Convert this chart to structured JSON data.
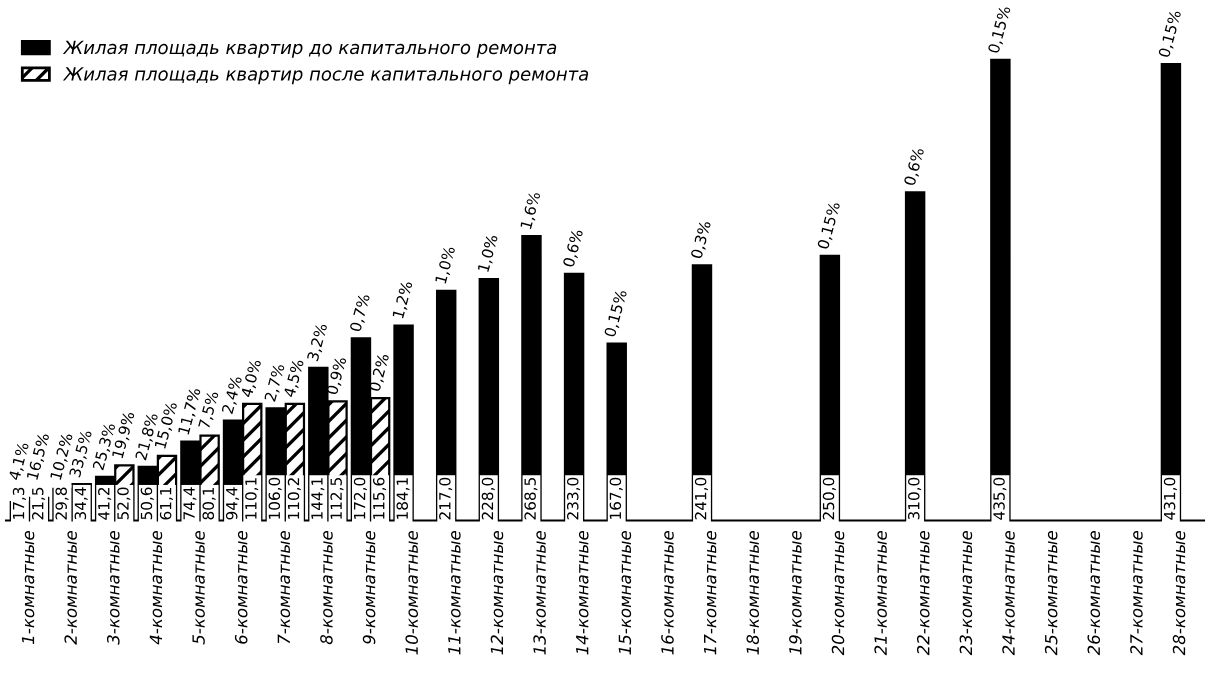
{
  "chart_data": {
    "type": "bar",
    "categories": [
      "1-комнатные",
      "2-комнатные",
      "3-комнатные",
      "4-комнатные",
      "5-комнатные",
      "6-комнатные",
      "7-комнатные",
      "8-комнатные",
      "9-комнатные",
      "10-комнатные",
      "11-комнатные",
      "12-комнатные",
      "13-комнатные",
      "14-комнатные",
      "15-комнатные",
      "16-комнатные",
      "17-комнатные",
      "18-комнатные",
      "19-комнатные",
      "20-комнатные",
      "21-комнатные",
      "22-комнатные",
      "23-комнатные",
      "24-комнатные",
      "25-комнатные",
      "26-комнатные",
      "27-комнатные",
      "28-комнатные"
    ],
    "series": [
      {
        "name": "Жилая площадь квартир до капитального ремонта",
        "color": "#000000",
        "values": [
          17.3,
          29.8,
          41.2,
          50.6,
          74.4,
          94.4,
          106.0,
          144.1,
          172.0,
          184.1,
          217.0,
          228.0,
          268.5,
          233.0,
          167.0,
          null,
          241.0,
          null,
          null,
          250.0,
          null,
          310.0,
          null,
          435.0,
          null,
          null,
          null,
          431.0
        ],
        "value_labels": [
          "17,3",
          "29,8",
          "41,2",
          "50,6",
          "74,4",
          "94,4",
          "106,0",
          "144,1",
          "172,0",
          "184,1",
          "217,0",
          "228,0",
          "268,5",
          "233,0",
          "167,0",
          null,
          "241,0",
          null,
          null,
          "250,0",
          null,
          "310,0",
          null,
          "435,0",
          null,
          null,
          null,
          "431,0"
        ]
      },
      {
        "name": "Жилая площадь квартир после капитального ремонта",
        "color": "#000000",
        "values": [
          21.5,
          34.4,
          52.0,
          61.1,
          80.1,
          110.1,
          110.2,
          112.5,
          115.6,
          null,
          null,
          null,
          null,
          null,
          null,
          null,
          null,
          null,
          null,
          null,
          null,
          null,
          null,
          null,
          null,
          null,
          null,
          null
        ],
        "value_labels": [
          "21,5",
          "34,4",
          "52,0",
          "61,1",
          "80,1",
          "110,1",
          "110,2",
          "112,5",
          "115,6",
          null,
          null,
          null,
          null,
          null,
          null,
          null,
          null,
          null,
          null,
          null,
          null,
          null,
          null,
          null,
          null,
          null,
          null,
          null
        ]
      }
    ],
    "annotations": [
      {
        "text": "4,1%",
        "x": "1-комнатные",
        "y": 17.3
      },
      {
        "text": "16,5%",
        "x": "1-комнатные",
        "y": 21.5
      },
      {
        "text": "10,2%",
        "x": "2-комнатные",
        "y": 29.8
      },
      {
        "text": "33,5%",
        "x": "2-комнатные",
        "y": 34.4
      },
      {
        "text": "25,3%",
        "x": "3-комнатные",
        "y": 41.2
      },
      {
        "text": "19,9%",
        "x": "3-комнатные",
        "y": 52.0
      },
      {
        "text": "21,8%",
        "x": "4-комнатные",
        "y": 50.6
      },
      {
        "text": "15,0%",
        "x": "4-комнатные",
        "y": 61.1
      },
      {
        "text": "11,7%",
        "x": "5-комнатные",
        "y": 74.4
      },
      {
        "text": "7,5%",
        "x": "5-комнатные",
        "y": 80.1
      },
      {
        "text": "2,4%",
        "x": "6-комнатные",
        "y": 94.4
      },
      {
        "text": "4,0%",
        "x": "6-комнатные",
        "y": 110.1
      },
      {
        "text": "2,7%",
        "x": "7-комнатные",
        "y": 106.0
      },
      {
        "text": "4,5%",
        "x": "7-комнатные",
        "y": 110.2
      },
      {
        "text": "3,2%",
        "x": "8-комнатные",
        "y": 144.1
      },
      {
        "text": "0,9%",
        "x": "8-комнатные",
        "y": 112.5
      },
      {
        "text": "0,7%",
        "x": "9-комнатные",
        "y": 172.0
      },
      {
        "text": "0,2%",
        "x": "9-комнатные",
        "y": 115.6
      },
      {
        "text": "1,2%",
        "x": "10-комнатные",
        "y": 184.1
      },
      {
        "text": "1,0%",
        "x": "11-комнатные",
        "y": 217.0
      },
      {
        "text": "1,0%",
        "x": "12-комнатные",
        "y": 228.0
      },
      {
        "text": "1,6%",
        "x": "13-комнатные",
        "y": 268.5
      },
      {
        "text": "0,6%",
        "x": "14-комнатные",
        "y": 233.0
      },
      {
        "text": "0,15%",
        "x": "15-комнатные",
        "y": 167.0
      },
      {
        "text": "0,3%",
        "x": "17-комнатные",
        "y": 241.0
      },
      {
        "text": "0,15%",
        "x": "20-комнатные",
        "y": 250.0
      },
      {
        "text": "0,6%",
        "x": "22-комнатные",
        "y": 310.0
      },
      {
        "text": "0,15%",
        "x": "24-комнатные",
        "y": 435.0
      },
      {
        "text": "0,15%",
        "x": "28-комнатные",
        "y": 431.0
      }
    ],
    "legend": "top left"
  }
}
